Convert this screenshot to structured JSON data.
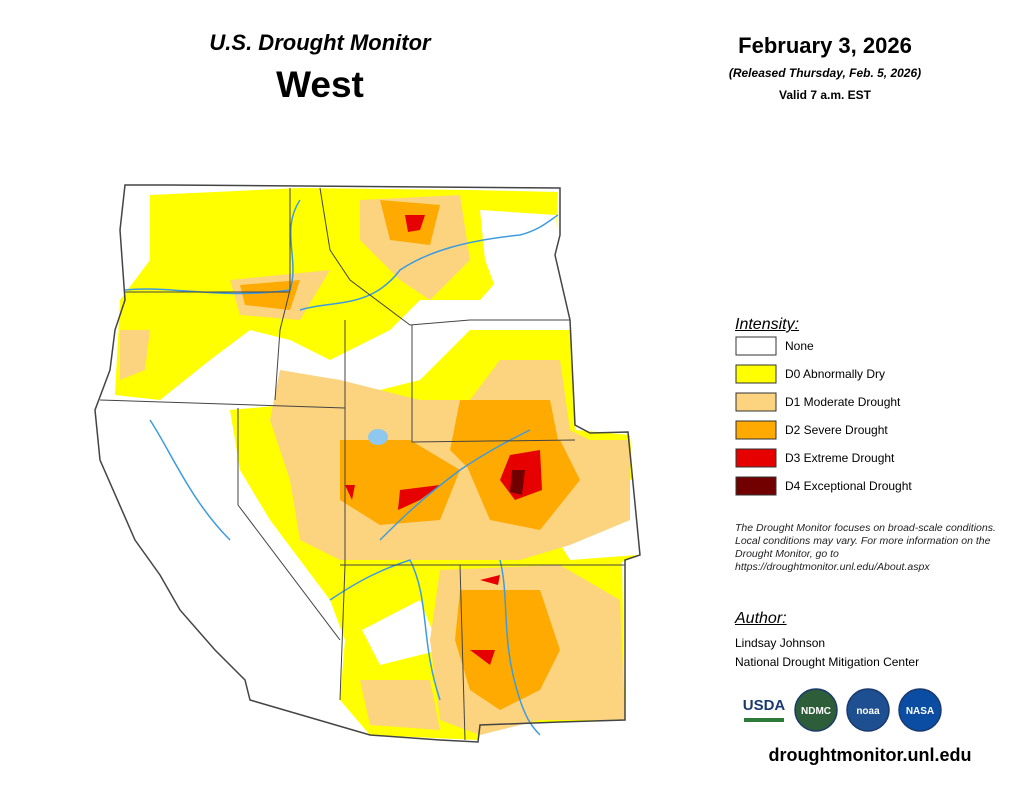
{
  "header": {
    "subtitle": "U.S. Drought Monitor",
    "title": "West"
  },
  "date": {
    "date": "February 3, 2026",
    "released": "(Released Thursday, Feb. 5, 2026)",
    "valid": "Valid 7 a.m. EST"
  },
  "legend": {
    "heading": "Intensity:",
    "items": [
      {
        "label": "None",
        "color": "#ffffff"
      },
      {
        "label": "D0 Abnormally Dry",
        "color": "#ffff00"
      },
      {
        "label": "D1 Moderate Drought",
        "color": "#fcd37f"
      },
      {
        "label": "D2 Severe Drought",
        "color": "#ffaa00"
      },
      {
        "label": "D3 Extreme Drought",
        "color": "#e60000"
      },
      {
        "label": "D4 Exceptional Drought",
        "color": "#730000"
      }
    ]
  },
  "note": "The Drought Monitor focuses on broad-scale conditions. Local conditions may vary. For more information on the Drought Monitor, go to https://droughtmonitor.unl.edu/About.aspx",
  "author": {
    "heading": "Author:",
    "name": "Lindsay Johnson",
    "org": "National Drought Mitigation Center"
  },
  "logos": [
    "USDA",
    "NDMC",
    "noaa",
    "NASA"
  ],
  "url": "droughtmonitor.unl.edu"
}
